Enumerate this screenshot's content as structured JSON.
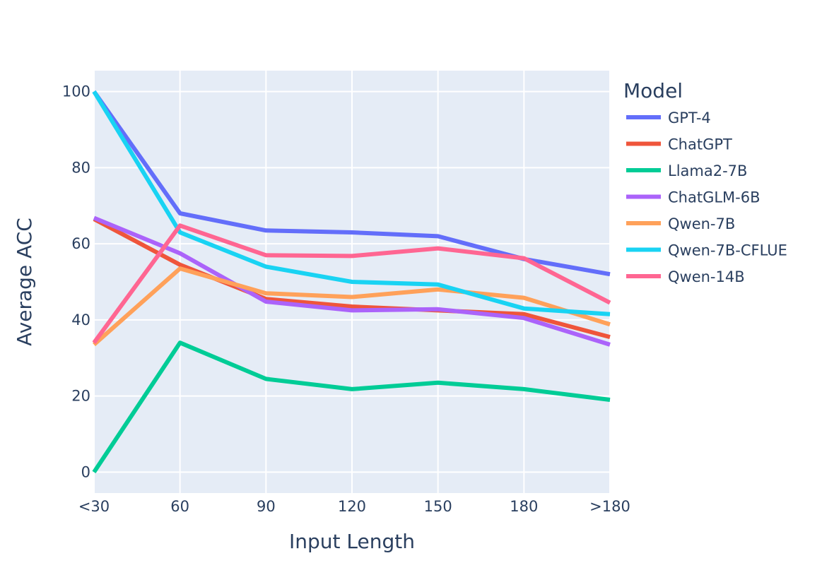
{
  "chart_data": {
    "type": "line",
    "title": "",
    "xlabel": "Input Length",
    "ylabel": "Average ACC",
    "categories": [
      "<30",
      "60",
      "90",
      "120",
      "150",
      "180",
      ">180"
    ],
    "ylim": [
      -5.5,
      105.5
    ],
    "yticks": [
      0,
      20,
      40,
      60,
      80,
      100
    ],
    "grid": true,
    "legend_title": "Model",
    "legend_position": "right",
    "series": [
      {
        "name": "GPT-4",
        "color": "#636efa",
        "values": [
          100,
          68,
          63.5,
          63,
          62,
          56,
          52
        ]
      },
      {
        "name": "ChatGPT",
        "color": "#ef553b",
        "values": [
          66.5,
          54.5,
          45.5,
          43.5,
          42.5,
          41.5,
          35.5
        ]
      },
      {
        "name": "Llama2-7B",
        "color": "#00cc96",
        "values": [
          0,
          34,
          24.5,
          21.8,
          23.5,
          21.8,
          19
        ]
      },
      {
        "name": "ChatGLM-6B",
        "color": "#ab63fa",
        "values": [
          66.8,
          57.5,
          44.8,
          42.5,
          42.8,
          40.5,
          33.5
        ]
      },
      {
        "name": "Qwen-7B",
        "color": "#ffa15a",
        "values": [
          33.5,
          53.5,
          47,
          46,
          48,
          45.8,
          38.8
        ]
      },
      {
        "name": "Qwen-7B-CFLUE",
        "color": "#19d3f3",
        "values": [
          100,
          63,
          54,
          50,
          49.3,
          43,
          41.5
        ]
      },
      {
        "name": "Qwen-14B",
        "color": "#ff6692",
        "values": [
          34,
          64.8,
          57,
          56.8,
          58.8,
          56.2,
          44.5
        ]
      }
    ]
  }
}
